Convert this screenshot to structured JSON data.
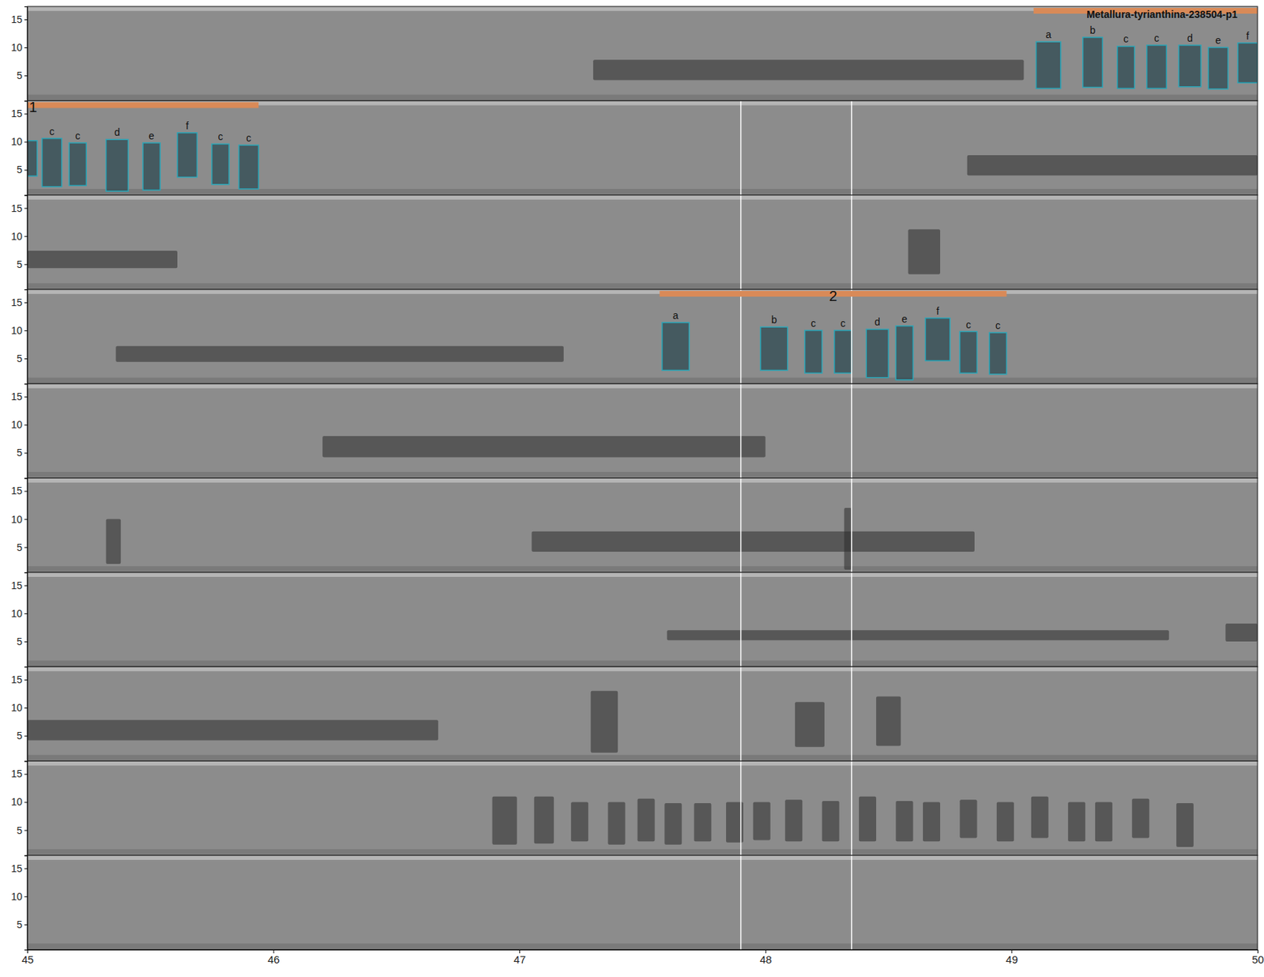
{
  "chart_data": {
    "type": "spectrogram",
    "xlim": [
      45,
      50
    ],
    "xticks": [
      45,
      46,
      47,
      48,
      49,
      50
    ],
    "ylim": [
      0.5,
      17.3
    ],
    "yticks": [
      5,
      10,
      15
    ],
    "rows": [
      {
        "vlines": [],
        "annotations": [
          {
            "label": "Metallura-tyrianthina-238504-p1",
            "x0": 49.09,
            "x1": 50
          }
        ],
        "boxes": [
          {
            "label": "a",
            "x0": 49.1,
            "x1": 49.2,
            "y0": 2.7,
            "y1": 11.0
          },
          {
            "label": "b",
            "x0": 49.29,
            "x1": 49.37,
            "y0": 2.9,
            "y1": 11.8
          },
          {
            "label": "c",
            "x0": 49.43,
            "x1": 49.5,
            "y0": 2.7,
            "y1": 10.2
          },
          {
            "label": "c",
            "x0": 49.55,
            "x1": 49.63,
            "y0": 2.7,
            "y1": 10.4
          },
          {
            "label": "d",
            "x0": 49.68,
            "x1": 49.77,
            "y0": 3.0,
            "y1": 10.4
          },
          {
            "label": "e",
            "x0": 49.8,
            "x1": 49.88,
            "y0": 2.6,
            "y1": 10.0
          },
          {
            "label": "f",
            "x0": 49.92,
            "x1": 50.0,
            "y0": 3.7,
            "y1": 10.8
          }
        ],
        "events": [
          {
            "x0": 47.3,
            "x1": 49.05,
            "y0": 4.2,
            "y1": 7.8
          }
        ]
      },
      {
        "vlines": [
          47.9,
          48.35
        ],
        "annotations": [
          {
            "label": "1",
            "x0": 45.0,
            "x1": 45.94
          }
        ],
        "boxes": [
          {
            "label": null,
            "x0": 45.0,
            "x1": 45.04,
            "y0": 3.9,
            "y1": 10.2
          },
          {
            "label": "c",
            "x0": 45.06,
            "x1": 45.14,
            "y0": 2.0,
            "y1": 10.6
          },
          {
            "label": "c",
            "x0": 45.17,
            "x1": 45.24,
            "y0": 2.2,
            "y1": 9.8
          },
          {
            "label": "d",
            "x0": 45.32,
            "x1": 45.41,
            "y0": 1.2,
            "y1": 10.4
          },
          {
            "label": "e",
            "x0": 45.47,
            "x1": 45.54,
            "y0": 1.4,
            "y1": 9.8
          },
          {
            "label": "f",
            "x0": 45.61,
            "x1": 45.69,
            "y0": 3.7,
            "y1": 11.6
          },
          {
            "label": "c",
            "x0": 45.75,
            "x1": 45.82,
            "y0": 2.4,
            "y1": 9.6
          },
          {
            "label": "c",
            "x0": 45.86,
            "x1": 45.94,
            "y0": 1.6,
            "y1": 9.4
          }
        ],
        "events": [
          {
            "x0": 48.82,
            "x1": 50.0,
            "y0": 4.0,
            "y1": 7.6
          }
        ]
      },
      {
        "vlines": [
          47.9,
          48.35
        ],
        "annotations": [],
        "boxes": [],
        "events": [
          {
            "x0": 45.0,
            "x1": 45.61,
            "y0": 4.3,
            "y1": 7.4
          },
          {
            "x0": 48.58,
            "x1": 48.71,
            "y0": 3.2,
            "y1": 11.2
          }
        ]
      },
      {
        "vlines": [
          47.9,
          48.35
        ],
        "annotations": [
          {
            "label": "2",
            "x0": 47.57,
            "x1": 48.98
          }
        ],
        "boxes": [
          {
            "label": "a",
            "x0": 47.58,
            "x1": 47.69,
            "y0": 2.9,
            "y1": 11.4
          },
          {
            "label": "b",
            "x0": 47.98,
            "x1": 48.09,
            "y0": 2.9,
            "y1": 10.6
          },
          {
            "label": "c",
            "x0": 48.16,
            "x1": 48.23,
            "y0": 2.4,
            "y1": 10.0
          },
          {
            "label": "c",
            "x0": 48.28,
            "x1": 48.35,
            "y0": 2.4,
            "y1": 10.0
          },
          {
            "label": "d",
            "x0": 48.41,
            "x1": 48.5,
            "y0": 1.6,
            "y1": 10.2
          },
          {
            "label": "e",
            "x0": 48.53,
            "x1": 48.6,
            "y0": 1.2,
            "y1": 10.8
          },
          {
            "label": "f",
            "x0": 48.65,
            "x1": 48.75,
            "y0": 4.6,
            "y1": 12.2
          },
          {
            "label": "c",
            "x0": 48.79,
            "x1": 48.86,
            "y0": 2.4,
            "y1": 9.8
          },
          {
            "label": "c",
            "x0": 48.91,
            "x1": 48.98,
            "y0": 2.2,
            "y1": 9.6
          }
        ],
        "events": [
          {
            "x0": 45.36,
            "x1": 47.18,
            "y0": 4.4,
            "y1": 7.2
          }
        ]
      },
      {
        "vlines": [
          47.9,
          48.35
        ],
        "annotations": [],
        "boxes": [],
        "events": [
          {
            "x0": 46.2,
            "x1": 48.0,
            "y0": 4.2,
            "y1": 8.0
          }
        ]
      },
      {
        "vlines": [
          47.9,
          48.35
        ],
        "annotations": [],
        "boxes": [],
        "events": [
          {
            "x0": 45.32,
            "x1": 45.38,
            "y0": 2.0,
            "y1": 10.0
          },
          {
            "x0": 47.05,
            "x1": 48.85,
            "y0": 4.2,
            "y1": 7.8
          },
          {
            "x0": 48.32,
            "x1": 48.35,
            "y0": 1.0,
            "y1": 12.0
          }
        ]
      },
      {
        "vlines": [
          47.9,
          48.35
        ],
        "annotations": [],
        "boxes": [],
        "events": [
          {
            "x0": 47.6,
            "x1": 49.64,
            "y0": 5.2,
            "y1": 7.0
          },
          {
            "x0": 49.87,
            "x1": 50.0,
            "y0": 5.0,
            "y1": 8.2
          }
        ]
      },
      {
        "vlines": [
          47.9,
          48.35
        ],
        "annotations": [],
        "boxes": [],
        "events": [
          {
            "x0": 45.0,
            "x1": 46.67,
            "y0": 4.2,
            "y1": 7.8
          },
          {
            "x0": 47.29,
            "x1": 47.4,
            "y0": 2.0,
            "y1": 13.0
          },
          {
            "x0": 48.12,
            "x1": 48.24,
            "y0": 3.0,
            "y1": 11.0
          },
          {
            "x0": 48.45,
            "x1": 48.55,
            "y0": 3.2,
            "y1": 12.0
          }
        ]
      },
      {
        "vlines": [
          47.9,
          48.35
        ],
        "annotations": [],
        "boxes": [],
        "events": [
          {
            "x0": 46.89,
            "x1": 46.99,
            "y0": 2.4,
            "y1": 11.0
          },
          {
            "x0": 47.06,
            "x1": 47.14,
            "y0": 2.6,
            "y1": 11.0
          },
          {
            "x0": 47.21,
            "x1": 47.28,
            "y0": 3.0,
            "y1": 10.0
          },
          {
            "x0": 47.36,
            "x1": 47.43,
            "y0": 2.4,
            "y1": 10.0
          },
          {
            "x0": 47.48,
            "x1": 47.55,
            "y0": 3.0,
            "y1": 10.6
          },
          {
            "x0": 47.59,
            "x1": 47.66,
            "y0": 2.4,
            "y1": 9.8
          },
          {
            "x0": 47.71,
            "x1": 47.78,
            "y0": 3.0,
            "y1": 9.8
          },
          {
            "x0": 47.84,
            "x1": 47.91,
            "y0": 2.8,
            "y1": 10.0
          },
          {
            "x0": 47.95,
            "x1": 48.02,
            "y0": 3.2,
            "y1": 10.0
          },
          {
            "x0": 48.08,
            "x1": 48.15,
            "y0": 3.0,
            "y1": 10.4
          },
          {
            "x0": 48.23,
            "x1": 48.3,
            "y0": 3.0,
            "y1": 10.2
          },
          {
            "x0": 48.38,
            "x1": 48.45,
            "y0": 3.0,
            "y1": 11.0
          },
          {
            "x0": 48.53,
            "x1": 48.6,
            "y0": 3.0,
            "y1": 10.2
          },
          {
            "x0": 48.64,
            "x1": 48.71,
            "y0": 3.0,
            "y1": 10.0
          },
          {
            "x0": 48.79,
            "x1": 48.86,
            "y0": 3.6,
            "y1": 10.4
          },
          {
            "x0": 48.94,
            "x1": 49.01,
            "y0": 3.0,
            "y1": 10.0
          },
          {
            "x0": 49.08,
            "x1": 49.15,
            "y0": 3.6,
            "y1": 11.0
          },
          {
            "x0": 49.23,
            "x1": 49.3,
            "y0": 3.0,
            "y1": 10.0
          },
          {
            "x0": 49.34,
            "x1": 49.41,
            "y0": 3.0,
            "y1": 10.0
          },
          {
            "x0": 49.49,
            "x1": 49.56,
            "y0": 3.6,
            "y1": 10.6
          },
          {
            "x0": 49.67,
            "x1": 49.74,
            "y0": 2.0,
            "y1": 9.8
          }
        ]
      },
      {
        "vlines": [
          47.9,
          48.35
        ],
        "annotations": [],
        "boxes": [],
        "events": []
      }
    ]
  }
}
